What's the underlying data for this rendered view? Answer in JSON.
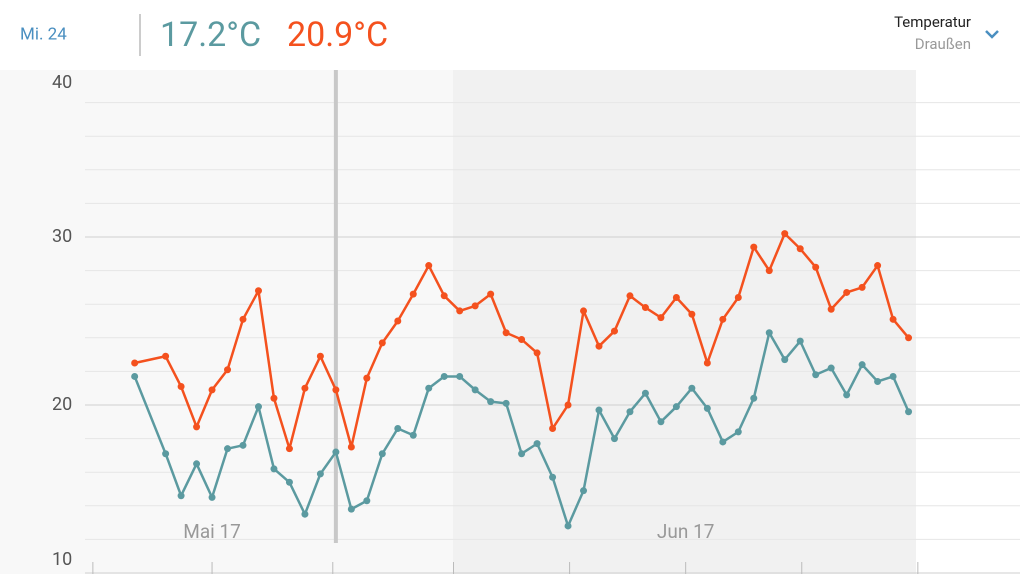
{
  "header": {
    "date": "Mi. 24",
    "min_temp": "17.2°C",
    "max_temp": "20.9°C",
    "selector_title": "Temperatur",
    "selector_subtitle": "Draußen"
  },
  "chart_data": {
    "type": "line",
    "x": [
      0,
      2,
      3,
      4,
      5,
      6,
      7,
      8,
      9,
      10,
      11,
      12,
      13,
      14,
      15,
      16,
      17,
      18,
      19,
      20,
      21,
      22,
      23,
      24,
      25,
      26,
      27,
      28,
      29,
      30,
      31,
      32,
      33,
      34,
      35,
      36,
      37,
      38,
      39,
      40,
      41,
      42,
      43,
      44,
      45,
      46,
      47,
      48,
      49,
      50
    ],
    "series": [
      {
        "color": "#5b9aa0",
        "values": [
          21.7,
          17.1,
          14.6,
          16.5,
          14.5,
          17.4,
          17.6,
          19.9,
          16.2,
          15.4,
          13.5,
          15.9,
          17.2,
          13.8,
          14.3,
          17.1,
          18.6,
          18.2,
          21.0,
          21.7,
          21.7,
          20.9,
          20.2,
          20.1,
          17.1,
          17.7,
          15.7,
          12.8,
          14.9,
          19.7,
          18.0,
          19.6,
          20.7,
          19.0,
          19.9,
          21.0,
          19.8,
          17.8,
          18.4,
          20.4,
          24.3,
          22.7,
          23.8,
          21.8,
          22.2,
          20.6,
          22.4,
          21.4,
          21.7,
          19.6
        ]
      },
      {
        "color": "#f4511e",
        "values": [
          22.5,
          22.9,
          21.1,
          18.7,
          20.9,
          22.1,
          25.1,
          26.8,
          20.4,
          17.4,
          21.0,
          22.9,
          20.9,
          17.5,
          21.6,
          23.7,
          25.0,
          26.6,
          28.3,
          26.5,
          25.6,
          25.9,
          26.6,
          24.3,
          23.9,
          23.1,
          18.6,
          20.0,
          25.6,
          23.5,
          24.4,
          26.5,
          25.8,
          25.2,
          26.4,
          25.4,
          22.5,
          25.1,
          26.4,
          29.4,
          28.0,
          30.2,
          29.3,
          28.2,
          25.7,
          26.7,
          27.0,
          28.3,
          25.1,
          24.0
        ]
      }
    ],
    "selected_x": 13,
    "xlim": [
      -8.7,
      57.2
    ],
    "xticks": [
      {
        "value": 5,
        "label": "Mai 17"
      },
      {
        "value": 35.6,
        "label": "Jun 17"
      }
    ],
    "xminorticks": [
      -2.7,
      5,
      12.8,
      20.6,
      28.1,
      35.6,
      43.1,
      50.6
    ],
    "ylim": [
      10,
      40
    ],
    "yticks": [
      10,
      20,
      30,
      40
    ],
    "yminorticks": [
      12,
      14,
      16,
      18,
      22,
      24,
      26,
      28,
      32,
      34,
      36,
      38
    ],
    "grid": true
  }
}
